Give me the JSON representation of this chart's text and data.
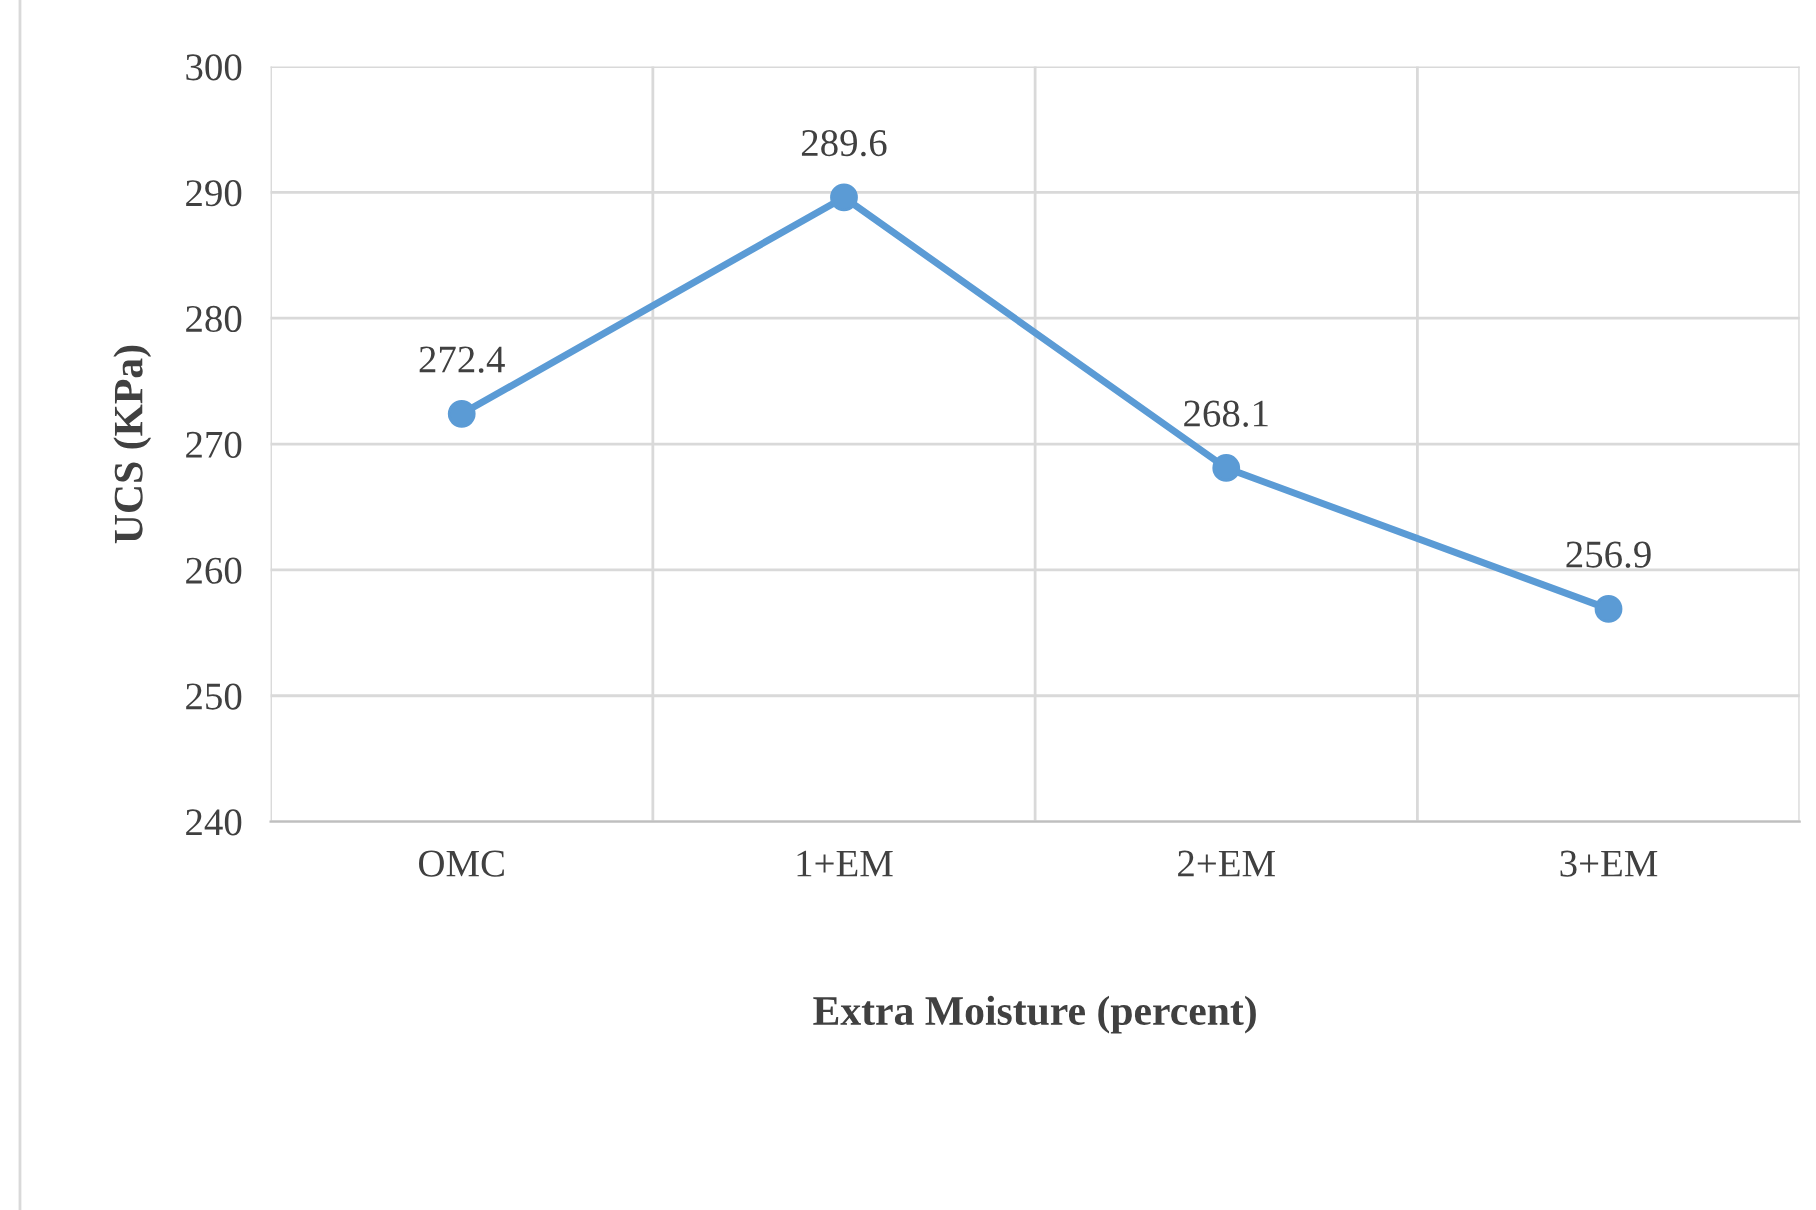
{
  "chart_data": {
    "type": "line",
    "xlabel": "Extra Moisture (percent)",
    "ylabel": "UCS (KPa)",
    "categories": [
      "OMC",
      "1+EM",
      "2+EM",
      "3+EM"
    ],
    "series": [
      {
        "color": "#5b9bd5",
        "values": [
          272.4,
          289.6,
          268.1,
          256.9
        ]
      }
    ],
    "ylim": [
      240,
      300
    ],
    "yticks": [
      240,
      250,
      260,
      270,
      280,
      290,
      300
    ],
    "grid": true,
    "marker": "circle",
    "line_style": "solid",
    "data_labels": true,
    "legend": false
  }
}
